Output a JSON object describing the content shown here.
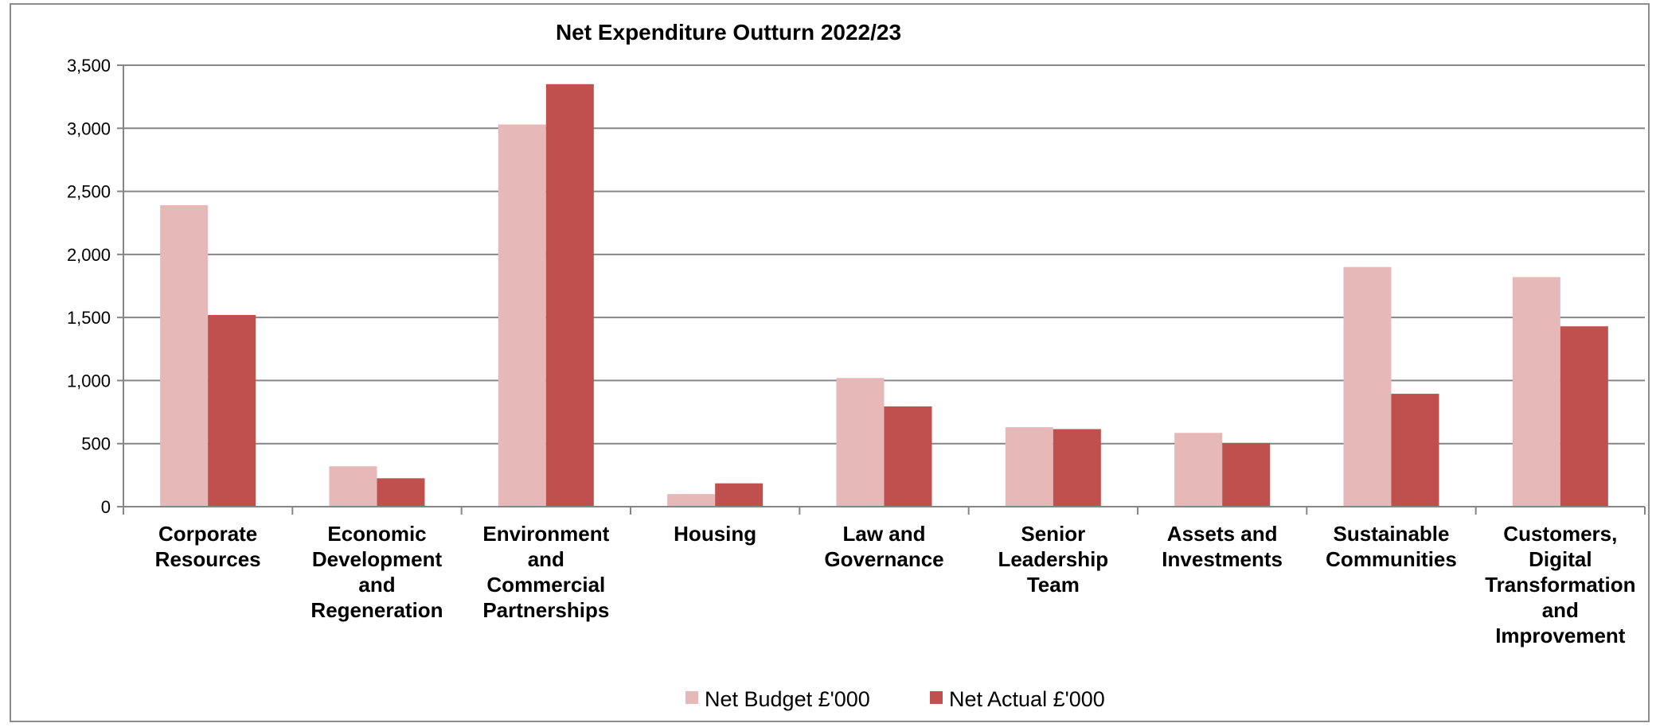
{
  "chart_data": {
    "type": "bar",
    "title": "Net Expenditure Outturn 2022/23",
    "xlabel": "",
    "ylabel": "",
    "ylim": [
      0,
      3500
    ],
    "yticks": [
      "0",
      "500",
      "1,000",
      "1,500",
      "2,000",
      "2,500",
      "3,000",
      "3,500"
    ],
    "ytick_values": [
      0,
      500,
      1000,
      1500,
      2000,
      2500,
      3000,
      3500
    ],
    "categories": [
      [
        "Corporate",
        "Resources"
      ],
      [
        "Economic",
        "Development",
        "and",
        "Regeneration"
      ],
      [
        "Environment",
        "and",
        "Commercial",
        "Partnerships"
      ],
      [
        "Housing"
      ],
      [
        "Law and",
        "Governance"
      ],
      [
        "Senior",
        "Leadership",
        "Team"
      ],
      [
        "Assets and",
        "Investments"
      ],
      [
        "Sustainable",
        "Communities"
      ],
      [
        "Customers,",
        "Digital",
        "Transformation",
        "and",
        "Improvement"
      ]
    ],
    "series": [
      {
        "name": "Net Budget £'000",
        "color": "#e6b8b7",
        "values": [
          2390,
          320,
          3030,
          100,
          1020,
          630,
          585,
          1900,
          1820
        ]
      },
      {
        "name": "Net Actual £'000",
        "color": "#c0504d",
        "values": [
          1520,
          225,
          3350,
          185,
          795,
          615,
          505,
          895,
          1430
        ]
      }
    ],
    "grid": true,
    "legend_position": "bottom"
  }
}
